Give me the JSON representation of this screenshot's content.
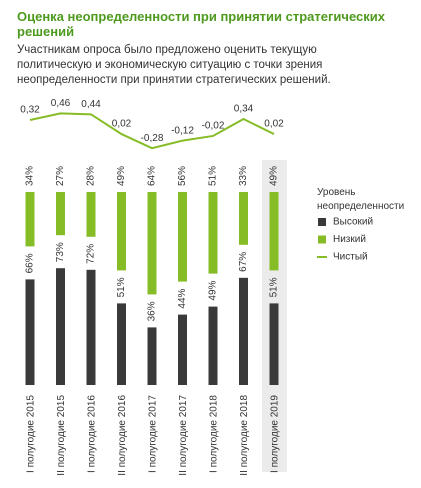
{
  "chart_data": {
    "type": "bar",
    "title": "Оценка неопределенности при принятии стратегических решений",
    "subtitle": "Участникам опроса было предложено оценить текущую политическую и экономическую ситуацию с точки зрения неопределенности при принятии стратегических решений.",
    "categories": [
      "I полугодие 2015",
      "II полугодие 2015",
      "I полугодие 2016",
      "II полугодие 2016",
      "I полугодие 2017",
      "II полугодие 2017",
      "I полугодие 2018",
      "II полугодие 2018",
      "I полугодие 2019"
    ],
    "legend_title": "Уровень неопределенности",
    "series": [
      {
        "name": "Высокий",
        "color": "#3a3a3a",
        "values": [
          66,
          73,
          72,
          51,
          36,
          44,
          49,
          67,
          51
        ],
        "value_labels": [
          "66%",
          "73%",
          "72%",
          "51%",
          "36%",
          "44%",
          "49%",
          "67%",
          "51%"
        ]
      },
      {
        "name": "Низкий",
        "color": "#86bc25",
        "values": [
          34,
          27,
          28,
          49,
          64,
          56,
          51,
          33,
          49
        ],
        "value_labels": [
          "34%",
          "27%",
          "28%",
          "49%",
          "64%",
          "56%",
          "51%",
          "33%",
          "49%"
        ]
      },
      {
        "name": "Чистый",
        "type": "line",
        "color": "#86bc25",
        "values": [
          0.32,
          0.46,
          0.44,
          0.02,
          -0.28,
          -0.12,
          -0.02,
          0.34,
          0.02
        ],
        "value_labels": [
          "0,32",
          "0,46",
          "0,44",
          "0,02",
          "-0,28",
          "-0,12",
          "-0,02",
          "0,34",
          "0,02"
        ]
      }
    ]
  }
}
